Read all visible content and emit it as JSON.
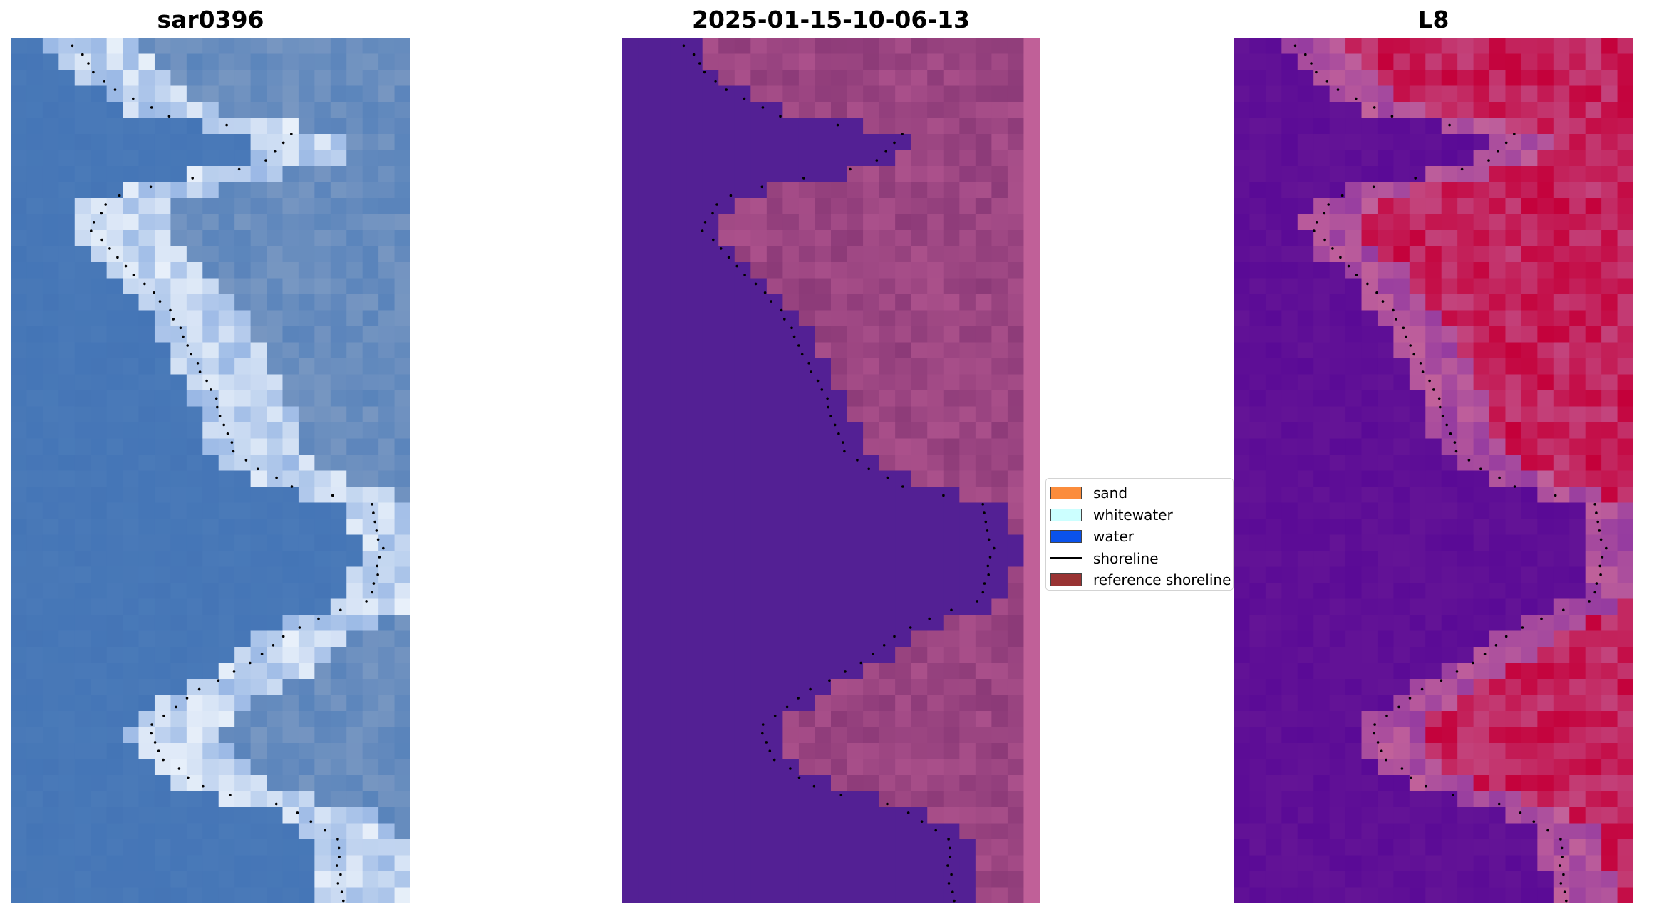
{
  "figure": {
    "panels": [
      {
        "id": "rgb",
        "title": "sar0396"
      },
      {
        "id": "classified",
        "title": "2025-01-15-10-06-13"
      },
      {
        "id": "index",
        "title": "L8"
      }
    ],
    "legend": {
      "items": [
        {
          "label": "sand",
          "color": "#fb8c3c",
          "kind": "patch"
        },
        {
          "label": "whitewater",
          "color": "#ccffff",
          "kind": "patch"
        },
        {
          "label": "water",
          "color": "#0a52eb",
          "kind": "patch"
        },
        {
          "label": "shoreline",
          "color": "#000000",
          "kind": "line"
        },
        {
          "label": "reference shoreline",
          "color": "#993333",
          "kind": "patch"
        }
      ]
    },
    "colors": {
      "water_rgb": "#4a7ab8",
      "classified_water": "#532094",
      "classified_land": "#8c3a78",
      "classified_edge": "#c06098",
      "index_low": "#5a0a96",
      "index_mid": "#c2629a",
      "index_high": "#c4003a"
    }
  }
}
